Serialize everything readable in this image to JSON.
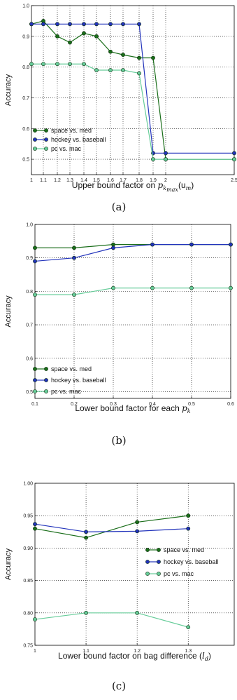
{
  "chart_data": [
    {
      "type": "line",
      "panel_label": "(a)",
      "xlabel_text": "Upper bound factor on ",
      "xlabel_math": "p",
      "xlabel_sub": "k",
      "xlabel_subsub": "max",
      "xlabel_tail": "(u",
      "xlabel_tail_sub": "m",
      "xlabel_close": ")",
      "ylabel": "Accuracy",
      "x": [
        1,
        1.1,
        1.2,
        1.3,
        1.4,
        1.5,
        1.6,
        1.7,
        1.8,
        1.9,
        2,
        2.5
      ],
      "xtick_labels": [
        "1",
        "1.1",
        "1.2",
        "1.3",
        "1.4",
        "1.5",
        "1.6",
        "1.7",
        "1.8",
        "1.9",
        "2",
        "2.5"
      ],
      "x_scale": "categorical-spaced",
      "ylim": [
        0.45,
        1.0
      ],
      "yticks": [
        0.5,
        0.6,
        0.7,
        0.8,
        0.9,
        1.0
      ],
      "ytick_labels": [
        "0.5",
        "0.6",
        "0.7",
        "0.8",
        "0.9",
        "1.0"
      ],
      "grid": true,
      "legend_position": "lower-left",
      "series": [
        {
          "name": "space vs. med",
          "color": "#1a6e1a",
          "values": [
            0.94,
            0.95,
            0.9,
            0.88,
            0.91,
            0.9,
            0.85,
            0.84,
            0.83,
            0.83,
            0.5,
            0.5
          ]
        },
        {
          "name": "hockey vs. baseball",
          "color": "#2233bb",
          "values": [
            0.94,
            0.94,
            0.94,
            0.94,
            0.94,
            0.94,
            0.94,
            0.94,
            0.94,
            0.52,
            0.52,
            0.52
          ]
        },
        {
          "name": "pc vs. mac",
          "color": "#66cc99",
          "values": [
            0.81,
            0.81,
            0.81,
            0.81,
            0.81,
            0.79,
            0.79,
            0.79,
            0.78,
            0.5,
            0.5,
            0.5
          ]
        }
      ]
    },
    {
      "type": "line",
      "panel_label": "(b)",
      "xlabel_text": "Lower bound factor for each ",
      "xlabel_math": "p",
      "xlabel_sub": "k",
      "ylabel": "Accuracy",
      "x": [
        0.1,
        0.2,
        0.3,
        0.4,
        0.5,
        0.6
      ],
      "xtick_labels": [
        "0.1",
        "0.2",
        "0.3",
        "0.4",
        "0.5",
        "0.6"
      ],
      "ylim": [
        0.48,
        1.0
      ],
      "yticks": [
        0.5,
        0.6,
        0.7,
        0.8,
        0.9,
        1.0
      ],
      "ytick_labels": [
        "0.5",
        "0.6",
        "0.7",
        "0.8",
        "0.9",
        "1.0"
      ],
      "grid": true,
      "legend_position": "lower-left",
      "series": [
        {
          "name": "space vs. med",
          "color": "#1a6e1a",
          "values": [
            0.93,
            0.93,
            0.94,
            0.94,
            0.94,
            0.94
          ]
        },
        {
          "name": "hockey vs. baseball",
          "color": "#2233bb",
          "values": [
            0.89,
            0.9,
            0.93,
            0.94,
            0.94,
            0.94
          ]
        },
        {
          "name": "pc vs. mac",
          "color": "#66cc99",
          "values": [
            0.79,
            0.79,
            0.81,
            0.81,
            0.81,
            0.81
          ]
        }
      ]
    },
    {
      "type": "line",
      "panel_label": "(c)",
      "xlabel_text": "Lower bound factor on bag difference (",
      "xlabel_math": "l",
      "xlabel_sub": "d",
      "xlabel_close": ")",
      "ylabel": "Accuracy",
      "x": [
        1,
        1.1,
        1.2,
        1.3
      ],
      "xtick_labels": [
        "1",
        "1.1",
        "1.2",
        "1.3"
      ],
      "xlim": [
        1,
        1.39
      ],
      "ylim": [
        0.75,
        1.0
      ],
      "yticks": [
        0.75,
        0.8,
        0.85,
        0.9,
        0.95,
        1.0
      ],
      "ytick_labels": [
        "0.75",
        "0.80",
        "0.85",
        "0.90",
        "0.95",
        "1.00"
      ],
      "grid": true,
      "legend_position": "center-right",
      "series": [
        {
          "name": "space vs. med",
          "color": "#1a6e1a",
          "values": [
            0.93,
            0.916,
            0.94,
            0.95
          ]
        },
        {
          "name": "hockey vs. baseball",
          "color": "#2233bb",
          "values": [
            0.937,
            0.925,
            0.926,
            0.93
          ]
        },
        {
          "name": "pc vs. mac",
          "color": "#66cc99",
          "values": [
            0.79,
            0.8,
            0.8,
            0.778
          ]
        }
      ]
    }
  ]
}
